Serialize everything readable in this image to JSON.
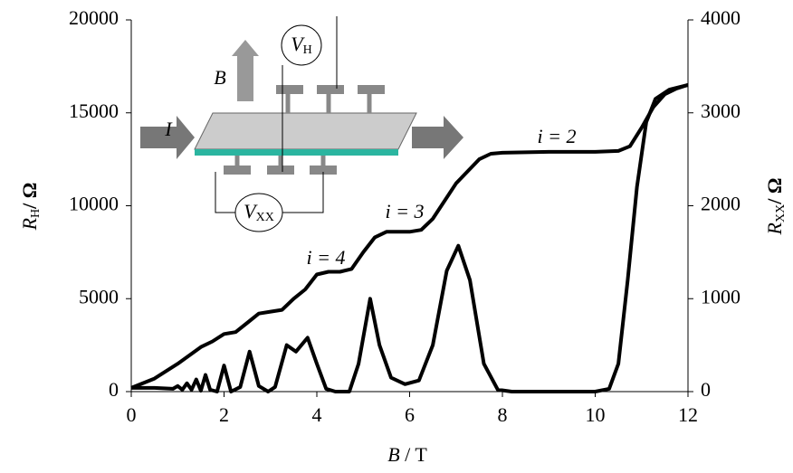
{
  "chart_data": {
    "type": "line",
    "xlabel": {
      "symbol": "B",
      "unit": "/ T"
    },
    "ylabel": {
      "symbol": "R",
      "subscript": "H",
      "unit": "/ Ω"
    },
    "y2label": {
      "symbol": "R",
      "subscript": "XX",
      "unit": "/ Ω"
    },
    "xlim": [
      0,
      12
    ],
    "xticks": [
      0,
      2,
      4,
      6,
      8,
      10,
      12
    ],
    "ylim": [
      0,
      20000
    ],
    "yticks": [
      0,
      5000,
      10000,
      15000,
      20000
    ],
    "y2lim": [
      0,
      4000
    ],
    "y2ticks": [
      0,
      1000,
      2000,
      3000,
      4000
    ],
    "series": [
      {
        "color": "#000000",
        "x": [
          0,
          0.5,
          1,
          1.5,
          1.75,
          2,
          2.25,
          2.5,
          2.75,
          3,
          3.25,
          3.5,
          3.75,
          4,
          4.25,
          4.5,
          4.75,
          5,
          5.25,
          5.5,
          6,
          6.25,
          6.5,
          7,
          7.5,
          7.75,
          8,
          9,
          10,
          10.5,
          10.75,
          11,
          11.25,
          11.5,
          11.75,
          12
        ],
        "values": [
          200,
          700,
          1500,
          2400,
          2700,
          3100,
          3200,
          3700,
          4200,
          4300,
          4400,
          5000,
          5500,
          6300,
          6450,
          6450,
          6600,
          7500,
          8300,
          8600,
          8600,
          8700,
          9300,
          11200,
          12500,
          12800,
          12850,
          12900,
          12900,
          12950,
          13200,
          14200,
          15300,
          16000,
          16300,
          16500
        ]
      },
      {
        "color": "#000000",
        "axis": "y2",
        "x": [
          0,
          0.5,
          0.9,
          1.0,
          1.1,
          1.2,
          1.3,
          1.4,
          1.5,
          1.6,
          1.7,
          1.85,
          2.0,
          2.15,
          2.35,
          2.55,
          2.75,
          2.95,
          3.1,
          3.35,
          3.55,
          3.8,
          4.0,
          4.2,
          4.4,
          4.7,
          4.9,
          5.15,
          5.35,
          5.6,
          5.9,
          6.2,
          6.5,
          6.8,
          7.05,
          7.3,
          7.6,
          7.9,
          8.2,
          9,
          10,
          10.3,
          10.5,
          10.7,
          10.9,
          11.1,
          11.3,
          11.6,
          12
        ],
        "values": [
          40,
          40,
          30,
          60,
          20,
          90,
          20,
          130,
          10,
          180,
          20,
          0,
          280,
          0,
          50,
          430,
          60,
          0,
          50,
          500,
          430,
          580,
          300,
          30,
          0,
          0,
          300,
          1000,
          500,
          150,
          80,
          120,
          500,
          1300,
          1570,
          1200,
          300,
          20,
          0,
          0,
          0,
          30,
          300,
          1200,
          2200,
          2900,
          3150,
          3250,
          3300
        ]
      }
    ],
    "annotations": [
      "i = 2",
      "i = 3",
      "i = 4"
    ],
    "inset_labels": {
      "current": "I",
      "field": "B",
      "hall_voltage": {
        "symbol": "V",
        "subscript": "H"
      },
      "longitudinal_voltage": {
        "symbol": "V",
        "subscript": "XX"
      }
    }
  }
}
